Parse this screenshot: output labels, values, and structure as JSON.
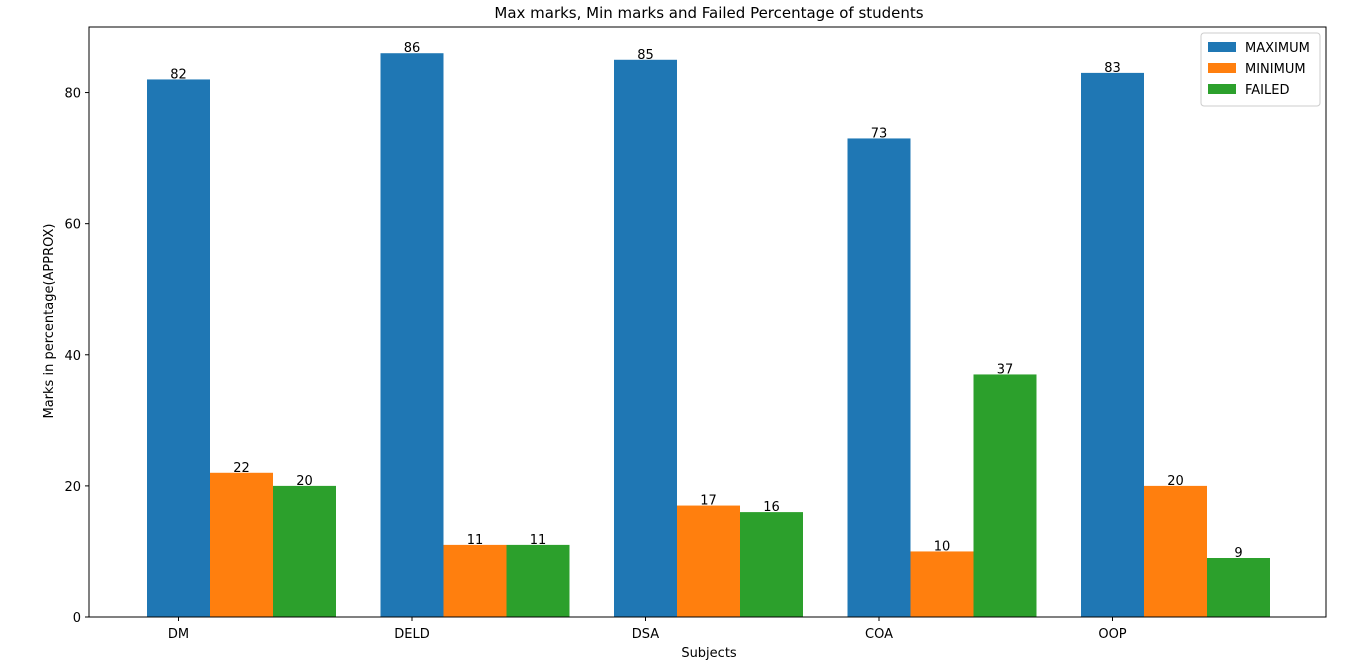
{
  "chart_data": {
    "type": "bar",
    "title": "Max marks, Min marks and Failed Percentage of students",
    "xlabel": "Subjects",
    "ylabel": "Marks in percentage(APPROX)",
    "categories": [
      "DM",
      "DELD",
      "DSA",
      "COA",
      "OOP"
    ],
    "series": [
      {
        "name": "MAXIMUM",
        "color": "#1f77b4",
        "values": [
          82,
          86,
          85,
          73,
          83
        ]
      },
      {
        "name": "MINIMUM",
        "color": "#ff7f0e",
        "values": [
          22,
          11,
          17,
          10,
          20
        ]
      },
      {
        "name": "FAILED",
        "color": "#2ca02c",
        "values": [
          20,
          11,
          16,
          37,
          9
        ]
      }
    ],
    "ylim": [
      0,
      90
    ],
    "yticks": [
      0,
      20,
      40,
      60,
      80
    ],
    "grid": false,
    "legend": "top-right"
  }
}
